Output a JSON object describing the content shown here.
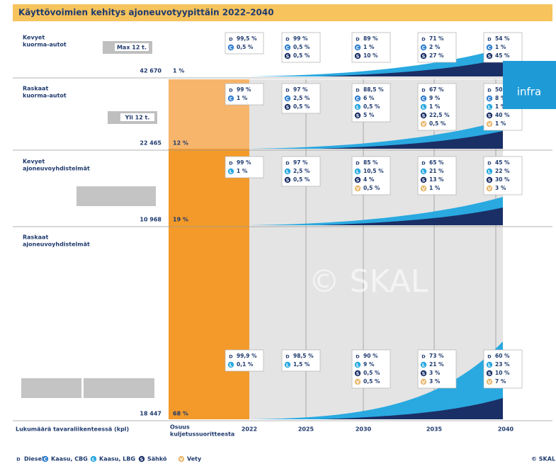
{
  "title": "Käyttövoimien kehitys ajoneuvotyypittäin 2022–2040",
  "rows": [
    {
      "name": [
        "Kevyet",
        "kuorma-autot"
      ],
      "vehicle_label": "Max 12 t.",
      "count": "42 670",
      "share": "1 %",
      "years": [
        [
          {
            "fuel": "D",
            "text": "99,5 %"
          },
          {
            "fuel": "C",
            "text": "0,5 %"
          }
        ],
        [
          {
            "fuel": "D",
            "text": "99 %"
          },
          {
            "fuel": "C",
            "text": "0,5 %"
          },
          {
            "fuel": "S",
            "text": "0,5 %"
          }
        ],
        [
          {
            "fuel": "D",
            "text": "89 %"
          },
          {
            "fuel": "C",
            "text": "1 %"
          },
          {
            "fuel": "S",
            "text": "10 %"
          }
        ],
        [
          {
            "fuel": "D",
            "text": "71 %"
          },
          {
            "fuel": "C",
            "text": "2 %"
          },
          {
            "fuel": "S",
            "text": "27 %"
          }
        ],
        [
          {
            "fuel": "D",
            "text": "54 %"
          },
          {
            "fuel": "C",
            "text": "1 %"
          },
          {
            "fuel": "S",
            "text": "45 %"
          }
        ]
      ]
    },
    {
      "name": [
        "Raskaat",
        "kuorma-autot"
      ],
      "vehicle_label": "Yli 12 t.",
      "count": "22 465",
      "share": "12 %",
      "years": [
        [
          {
            "fuel": "D",
            "text": "99 %"
          },
          {
            "fuel": "C",
            "text": "1 %"
          }
        ],
        [
          {
            "fuel": "D",
            "text": "97 %"
          },
          {
            "fuel": "C",
            "text": "2,5 %"
          },
          {
            "fuel": "S",
            "text": "0,5 %"
          }
        ],
        [
          {
            "fuel": "D",
            "text": "88,5 %"
          },
          {
            "fuel": "C",
            "text": "6 %"
          },
          {
            "fuel": "L",
            "text": "0,5 %"
          },
          {
            "fuel": "S",
            "text": "5 %"
          }
        ],
        [
          {
            "fuel": "D",
            "text": "67 %"
          },
          {
            "fuel": "C",
            "text": "9 %"
          },
          {
            "fuel": "L",
            "text": "1 %"
          },
          {
            "fuel": "S",
            "text": "22,5 %"
          },
          {
            "fuel": "V",
            "text": "0,5 %"
          }
        ],
        [
          {
            "fuel": "D",
            "text": "50 %"
          },
          {
            "fuel": "C",
            "text": "8 %"
          },
          {
            "fuel": "L",
            "text": "1 %"
          },
          {
            "fuel": "S",
            "text": "40 %"
          },
          {
            "fuel": "V",
            "text": "1 %"
          }
        ]
      ]
    },
    {
      "name": [
        "Kevyet",
        "ajoneuvoyhdistelmät"
      ],
      "count": "10 968",
      "share": "19 %",
      "years": [
        [
          {
            "fuel": "D",
            "text": "99 %"
          },
          {
            "fuel": "L",
            "text": "1 %"
          }
        ],
        [
          {
            "fuel": "D",
            "text": "97 %"
          },
          {
            "fuel": "L",
            "text": "2,5 %"
          },
          {
            "fuel": "S",
            "text": "0,5 %"
          }
        ],
        [
          {
            "fuel": "D",
            "text": "85 %"
          },
          {
            "fuel": "L",
            "text": "10,5 %"
          },
          {
            "fuel": "S",
            "text": "4 %"
          },
          {
            "fuel": "V",
            "text": "0,5 %"
          }
        ],
        [
          {
            "fuel": "D",
            "text": "65 %"
          },
          {
            "fuel": "L",
            "text": "21 %"
          },
          {
            "fuel": "S",
            "text": "13 %"
          },
          {
            "fuel": "V",
            "text": "1 %"
          }
        ],
        [
          {
            "fuel": "D",
            "text": "45 %"
          },
          {
            "fuel": "L",
            "text": "22 %"
          },
          {
            "fuel": "S",
            "text": "30 %"
          },
          {
            "fuel": "V",
            "text": "3 %"
          }
        ]
      ]
    },
    {
      "name": [
        "Raskaat",
        "ajoneuvoyhdistelmät"
      ],
      "count": "18 447",
      "share": "68 %",
      "years": [
        [
          {
            "fuel": "D",
            "text": "99,9 %"
          },
          {
            "fuel": "L",
            "text": "0,1 %"
          }
        ],
        [
          {
            "fuel": "D",
            "text": "98,5 %"
          },
          {
            "fuel": "L",
            "text": "1,5 %"
          }
        ],
        [
          {
            "fuel": "D",
            "text": "90 %"
          },
          {
            "fuel": "L",
            "text": "9 %"
          },
          {
            "fuel": "S",
            "text": "0,5 %"
          },
          {
            "fuel": "V",
            "text": "0,5 %"
          }
        ],
        [
          {
            "fuel": "D",
            "text": "73 %"
          },
          {
            "fuel": "L",
            "text": "21 %"
          },
          {
            "fuel": "S",
            "text": "3 %"
          },
          {
            "fuel": "V",
            "text": "3 %"
          }
        ],
        [
          {
            "fuel": "D",
            "text": "60 %"
          },
          {
            "fuel": "L",
            "text": "23 %"
          },
          {
            "fuel": "S",
            "text": "10 %"
          },
          {
            "fuel": "V",
            "text": "7 %"
          }
        ]
      ]
    }
  ],
  "axis": {
    "count_label": "Lukumäärä tavaraliikenteessä (kpl)",
    "share_label": [
      "Osuus",
      "kuljetussuoritteesta"
    ],
    "years": [
      "2022",
      "2025",
      "2030",
      "2035",
      "2040"
    ]
  },
  "legend": [
    {
      "key": "D",
      "label": "Diesel",
      "color": "#ffffff"
    },
    {
      "key": "C",
      "label": "Kaasu, CBG",
      "color": "#2f7fd1"
    },
    {
      "key": "L",
      "label": "Kaasu, LBG",
      "color": "#29a9e0"
    },
    {
      "key": "S",
      "label": "Sähkö",
      "color": "#1a2f66"
    },
    {
      "key": "V",
      "label": "Vety",
      "color": "#e8b66a"
    }
  ],
  "copyright": "© SKAL",
  "watermark": "© SKAL",
  "overlay": "infra"
}
